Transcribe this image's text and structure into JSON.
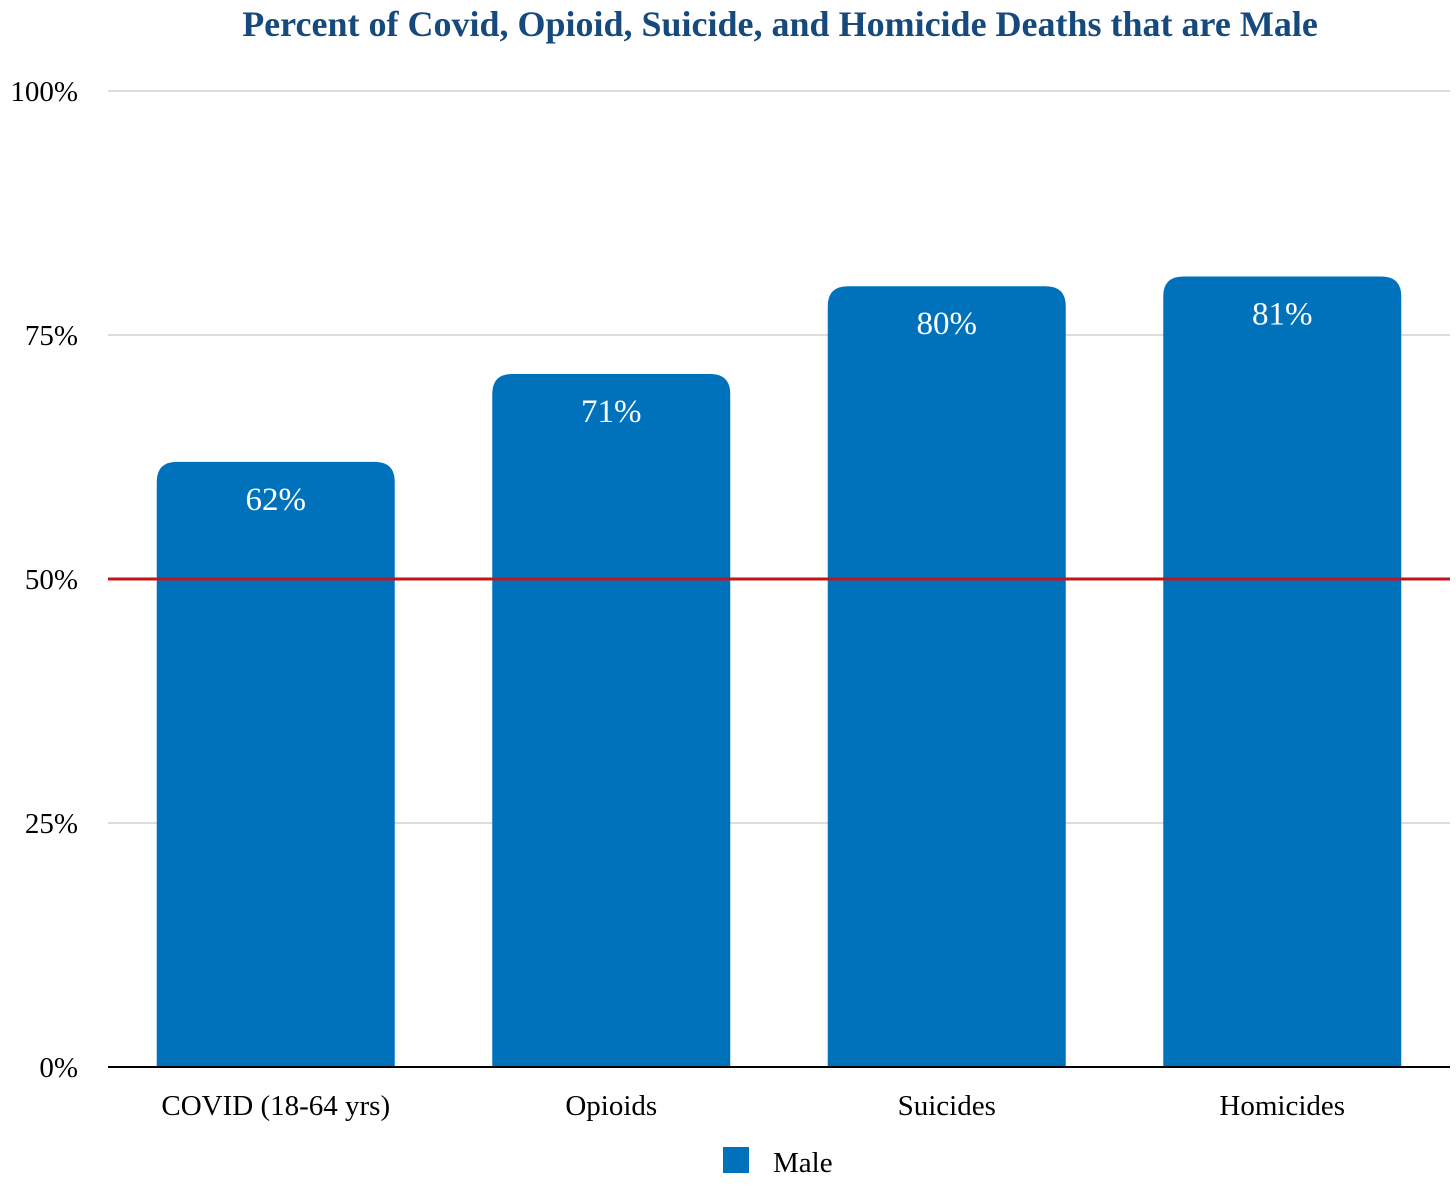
{
  "chart_data": {
    "type": "bar",
    "title": "Percent of Covid, Opioid, Suicide, and Homicide Deaths that are Male",
    "categories": [
      "COVID (18-64 yrs)",
      "Opioids",
      "Suicides",
      "Homicides"
    ],
    "series": [
      {
        "name": "Male",
        "values": [
          62,
          71,
          80,
          81
        ],
        "labels": [
          "62%",
          "71%",
          "80%",
          "81%"
        ],
        "color": "#0072bb"
      }
    ],
    "ylim": [
      0,
      100
    ],
    "yticks": [
      0,
      25,
      50,
      75,
      100
    ],
    "ytick_labels": [
      "0%",
      "25%",
      "50%",
      "75%",
      "100%"
    ],
    "reference_line": {
      "value": 50,
      "color": "#c0161b"
    },
    "grid": true,
    "grid_color": "#c8c8c8",
    "legend_position": "bottom-center",
    "title_color": "#174a7c"
  }
}
